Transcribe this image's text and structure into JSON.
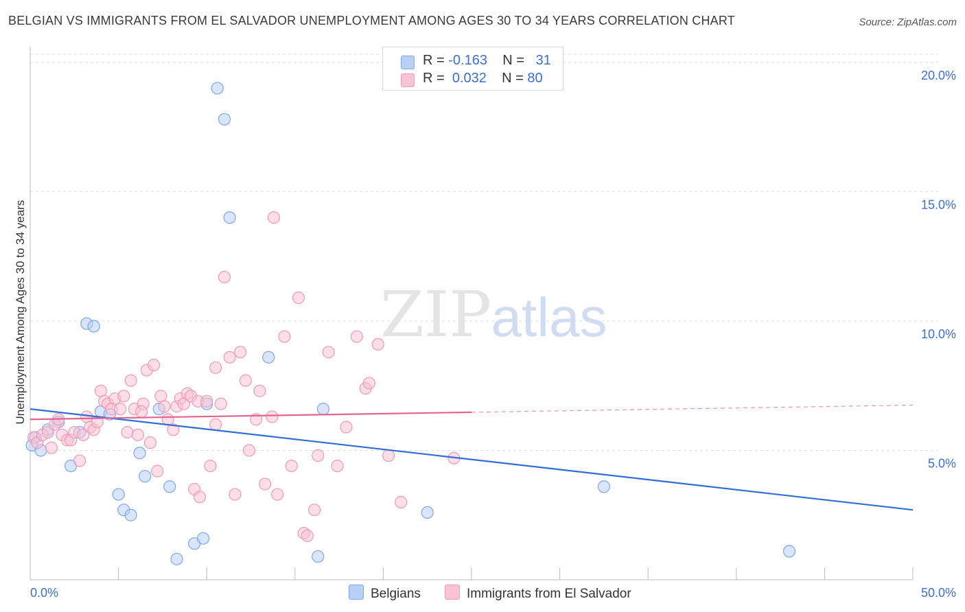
{
  "header": {
    "title": "BELGIAN VS IMMIGRANTS FROM EL SALVADOR UNEMPLOYMENT AMONG AGES 30 TO 34 YEARS CORRELATION CHART",
    "source": "Source: ZipAtlas.com"
  },
  "watermark": {
    "zip": "ZIP",
    "atlas": "atlas"
  },
  "legend_box": {
    "rows": [
      {
        "r_label": "R = ",
        "r_value": "-0.163",
        "n_label": "N = ",
        "n_value": "31"
      },
      {
        "r_label": "R = ",
        "r_value": "0.032",
        "n_label": "N = ",
        "n_value": "80"
      }
    ]
  },
  "colors": {
    "belgians_fill": "#b9d0f5",
    "belgians_stroke": "#7fa6e6",
    "belgians_line": "#2e6fd6",
    "elsalvador_fill": "#f8c3d3",
    "elsalvador_stroke": "#ee9bb6",
    "elsalvador_line": "#e2648f",
    "axis_label": "#3b6fd4",
    "grid": "#dddddd"
  },
  "chart_data": {
    "type": "scatter",
    "title": "BELGIAN VS IMMIGRANTS FROM EL SALVADOR UNEMPLOYMENT AMONG AGES 30 TO 34 YEARS CORRELATION CHART",
    "xlabel": "",
    "ylabel": "Unemployment Among Ages 30 to 34 years",
    "xlim": [
      0,
      50
    ],
    "ylim": [
      0,
      20.5
    ],
    "x_tick_labels": [
      "0.0%",
      "50.0%"
    ],
    "y_ticks": [
      5,
      10,
      15,
      20
    ],
    "y_tick_labels": [
      "5.0%",
      "10.0%",
      "15.0%",
      "20.0%"
    ],
    "grid": true,
    "legend_position": "bottom-center",
    "series": [
      {
        "name": "Belgians",
        "r": -0.163,
        "n": 31,
        "trend": {
          "x0": 0,
          "y0": 6.6,
          "x1": 50,
          "y1": 2.7,
          "solid_until": 50
        },
        "points": [
          [
            0.1,
            5.2
          ],
          [
            0.6,
            5.0
          ],
          [
            1.0,
            5.8
          ],
          [
            1.6,
            6.1
          ],
          [
            2.3,
            4.4
          ],
          [
            2.8,
            5.7
          ],
          [
            3.2,
            9.9
          ],
          [
            3.6,
            9.8
          ],
          [
            4.0,
            6.5
          ],
          [
            4.5,
            6.4
          ],
          [
            5.0,
            3.3
          ],
          [
            5.3,
            2.7
          ],
          [
            5.7,
            2.5
          ],
          [
            6.2,
            4.9
          ],
          [
            6.5,
            4.0
          ],
          [
            7.3,
            6.6
          ],
          [
            7.9,
            3.6
          ],
          [
            8.3,
            0.8
          ],
          [
            9.3,
            1.4
          ],
          [
            9.8,
            1.6
          ],
          [
            10.0,
            6.8
          ],
          [
            10.6,
            19.0
          ],
          [
            11.0,
            17.8
          ],
          [
            11.3,
            14.0
          ],
          [
            13.5,
            8.6
          ],
          [
            16.3,
            0.9
          ],
          [
            16.6,
            6.6
          ],
          [
            22.5,
            2.6
          ],
          [
            32.5,
            3.6
          ],
          [
            43.0,
            1.1
          ],
          [
            0.3,
            5.5
          ]
        ]
      },
      {
        "name": "Immigrants from El Salvador",
        "r": 0.032,
        "n": 80,
        "trend": {
          "x0": 0,
          "y0": 6.2,
          "x1": 50,
          "y1": 6.75,
          "solid_until": 25
        },
        "points": [
          [
            0.2,
            5.5
          ],
          [
            0.4,
            5.3
          ],
          [
            0.7,
            5.6
          ],
          [
            1.0,
            5.7
          ],
          [
            1.2,
            5.1
          ],
          [
            1.4,
            6.0
          ],
          [
            1.6,
            6.2
          ],
          [
            1.8,
            5.6
          ],
          [
            2.1,
            5.4
          ],
          [
            2.3,
            5.4
          ],
          [
            2.5,
            5.7
          ],
          [
            2.8,
            4.6
          ],
          [
            3.0,
            5.6
          ],
          [
            3.2,
            6.3
          ],
          [
            3.4,
            5.9
          ],
          [
            3.6,
            5.8
          ],
          [
            3.8,
            6.1
          ],
          [
            4.0,
            7.3
          ],
          [
            4.2,
            6.9
          ],
          [
            4.4,
            6.8
          ],
          [
            4.6,
            6.6
          ],
          [
            4.8,
            7.0
          ],
          [
            5.1,
            6.6
          ],
          [
            5.3,
            7.1
          ],
          [
            5.5,
            5.7
          ],
          [
            5.7,
            7.7
          ],
          [
            5.9,
            6.6
          ],
          [
            6.1,
            5.6
          ],
          [
            6.4,
            6.8
          ],
          [
            6.6,
            8.1
          ],
          [
            6.8,
            5.3
          ],
          [
            7.0,
            8.3
          ],
          [
            7.2,
            4.2
          ],
          [
            7.4,
            7.1
          ],
          [
            7.6,
            6.7
          ],
          [
            7.8,
            6.2
          ],
          [
            8.1,
            5.8
          ],
          [
            8.3,
            6.7
          ],
          [
            8.5,
            7.0
          ],
          [
            8.7,
            6.8
          ],
          [
            8.9,
            7.2
          ],
          [
            9.1,
            7.1
          ],
          [
            9.3,
            3.5
          ],
          [
            9.5,
            6.9
          ],
          [
            9.6,
            3.2
          ],
          [
            10.0,
            6.9
          ],
          [
            10.2,
            4.4
          ],
          [
            10.5,
            8.2
          ],
          [
            10.8,
            6.8
          ],
          [
            11.0,
            11.7
          ],
          [
            11.3,
            8.6
          ],
          [
            11.6,
            3.3
          ],
          [
            11.9,
            8.8
          ],
          [
            12.2,
            7.7
          ],
          [
            12.4,
            5.0
          ],
          [
            12.8,
            6.2
          ],
          [
            13.0,
            7.3
          ],
          [
            13.3,
            3.7
          ],
          [
            13.7,
            6.3
          ],
          [
            13.8,
            14.0
          ],
          [
            14.0,
            3.3
          ],
          [
            14.4,
            9.4
          ],
          [
            14.8,
            4.4
          ],
          [
            15.2,
            10.9
          ],
          [
            15.5,
            1.8
          ],
          [
            15.7,
            1.7
          ],
          [
            16.1,
            2.7
          ],
          [
            16.3,
            4.8
          ],
          [
            16.9,
            8.8
          ],
          [
            17.4,
            4.4
          ],
          [
            17.9,
            5.9
          ],
          [
            18.5,
            9.4
          ],
          [
            19.0,
            7.4
          ],
          [
            19.2,
            7.6
          ],
          [
            19.7,
            9.1
          ],
          [
            20.3,
            4.8
          ],
          [
            21.0,
            3.0
          ],
          [
            24.0,
            4.7
          ],
          [
            10.5,
            6.0
          ],
          [
            6.3,
            6.5
          ]
        ]
      }
    ]
  },
  "bottom_legend": {
    "items": [
      {
        "label": "Belgians"
      },
      {
        "label": "Immigrants from El Salvador"
      }
    ]
  }
}
